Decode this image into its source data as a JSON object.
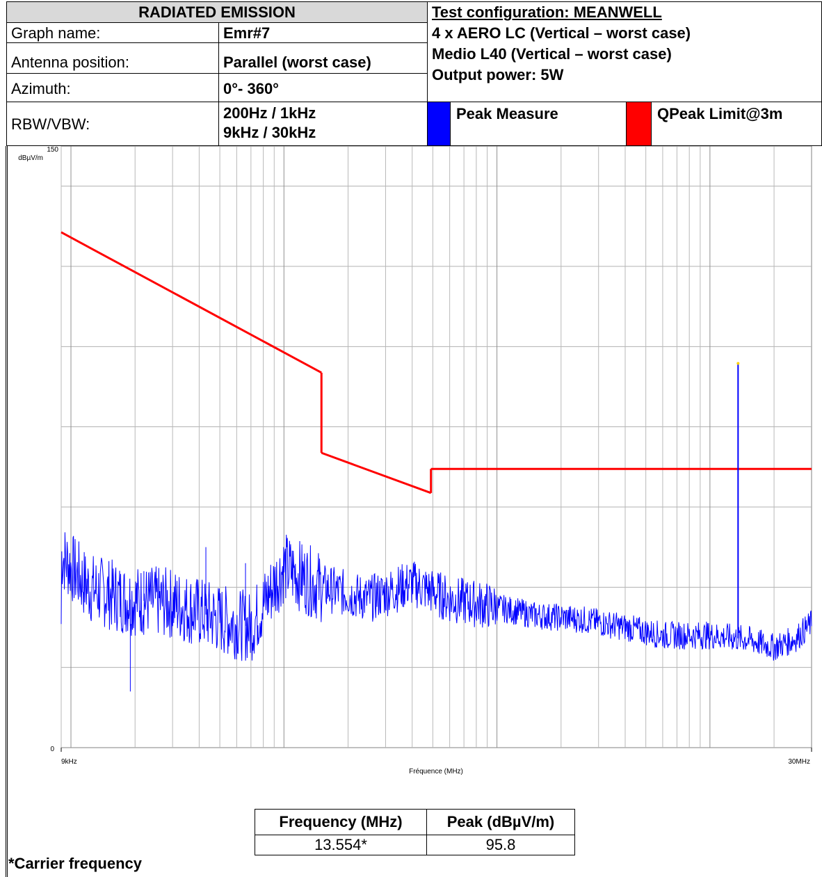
{
  "header": {
    "title": "RADIATED EMISSION",
    "graph_name_label": "Graph name:",
    "graph_name_value": "Emr#7",
    "antenna_label": "Antenna position:",
    "antenna_value": "Parallel (worst case)",
    "azimuth_label": "Azimuth:",
    "azimuth_value": "0°- 360°",
    "rbw_label": "RBW/VBW:",
    "rbw_value_1": "200Hz / 1kHz",
    "rbw_value_2": "9kHz / 30kHz",
    "test_config": "Test configuration: MEANWELL",
    "config_line_1": "4 x AERO LC (Vertical – worst case)",
    "config_line_2": "Medio L40 (Vertical – worst case)",
    "config_line_3": "Output power: 5W"
  },
  "legend": [
    {
      "name": "Peak Measure",
      "color": "#0000ff"
    },
    {
      "name": "QPeak Limit@3m",
      "color": "#ff0000"
    }
  ],
  "chart_data": {
    "type": "line",
    "x_scale": "log",
    "xlim_mhz": [
      0.009,
      30
    ],
    "ylim": [
      0,
      150
    ],
    "ytick_top": "150",
    "ytick_bottom": "0",
    "yunit": "dBµV/m",
    "xtick_left": "9kHz",
    "xtick_right": "30MHz",
    "xlabel": "Fréquence (MHz)",
    "grid": true,
    "series": [
      {
        "name": "QPeak Limit@3m",
        "color": "#ff0000",
        "segments": [
          {
            "x": [
              0.009,
              0.15
            ],
            "y": [
              128.5,
              93.5
            ]
          },
          {
            "x": [
              0.15,
              0.15
            ],
            "y": [
              93.5,
              73.5
            ]
          },
          {
            "x": [
              0.15,
              0.49
            ],
            "y": [
              73.5,
              63.5
            ]
          },
          {
            "x": [
              0.49,
              0.49
            ],
            "y": [
              63.5,
              69.5
            ]
          },
          {
            "x": [
              0.49,
              30
            ],
            "y": [
              69.5,
              69.5
            ]
          }
        ]
      },
      {
        "name": "Peak Measure",
        "color": "#0000ff",
        "envelope": [
          {
            "x": 0.009,
            "y": 48
          },
          {
            "x": 0.012,
            "y": 40
          },
          {
            "x": 0.018,
            "y": 37
          },
          {
            "x": 0.03,
            "y": 36
          },
          {
            "x": 0.05,
            "y": 32
          },
          {
            "x": 0.07,
            "y": 30
          },
          {
            "x": 0.1,
            "y": 45
          },
          {
            "x": 0.15,
            "y": 40
          },
          {
            "x": 0.25,
            "y": 37
          },
          {
            "x": 0.4,
            "y": 41
          },
          {
            "x": 0.6,
            "y": 37
          },
          {
            "x": 1.0,
            "y": 35
          },
          {
            "x": 1.5,
            "y": 33
          },
          {
            "x": 2.5,
            "y": 32
          },
          {
            "x": 4.0,
            "y": 30
          },
          {
            "x": 6.0,
            "y": 28
          },
          {
            "x": 10.0,
            "y": 28
          },
          {
            "x": 15.0,
            "y": 27
          },
          {
            "x": 20.0,
            "y": 25
          },
          {
            "x": 25.0,
            "y": 27
          },
          {
            "x": 30.0,
            "y": 31
          }
        ],
        "spikes": [
          {
            "x": 0.022,
            "y": 44
          },
          {
            "x": 0.043,
            "y": 50
          },
          {
            "x": 0.066,
            "y": 46
          },
          {
            "x": 0.019,
            "y": 14
          },
          {
            "x": 13.554,
            "y": 95.8
          }
        ]
      }
    ]
  },
  "peak_table": {
    "headers": [
      "Frequency (MHz)",
      "Peak (dBµV/m)"
    ],
    "rows": [
      [
        "13.554*",
        "95.8"
      ]
    ]
  },
  "footnote": "*Carrier frequency"
}
